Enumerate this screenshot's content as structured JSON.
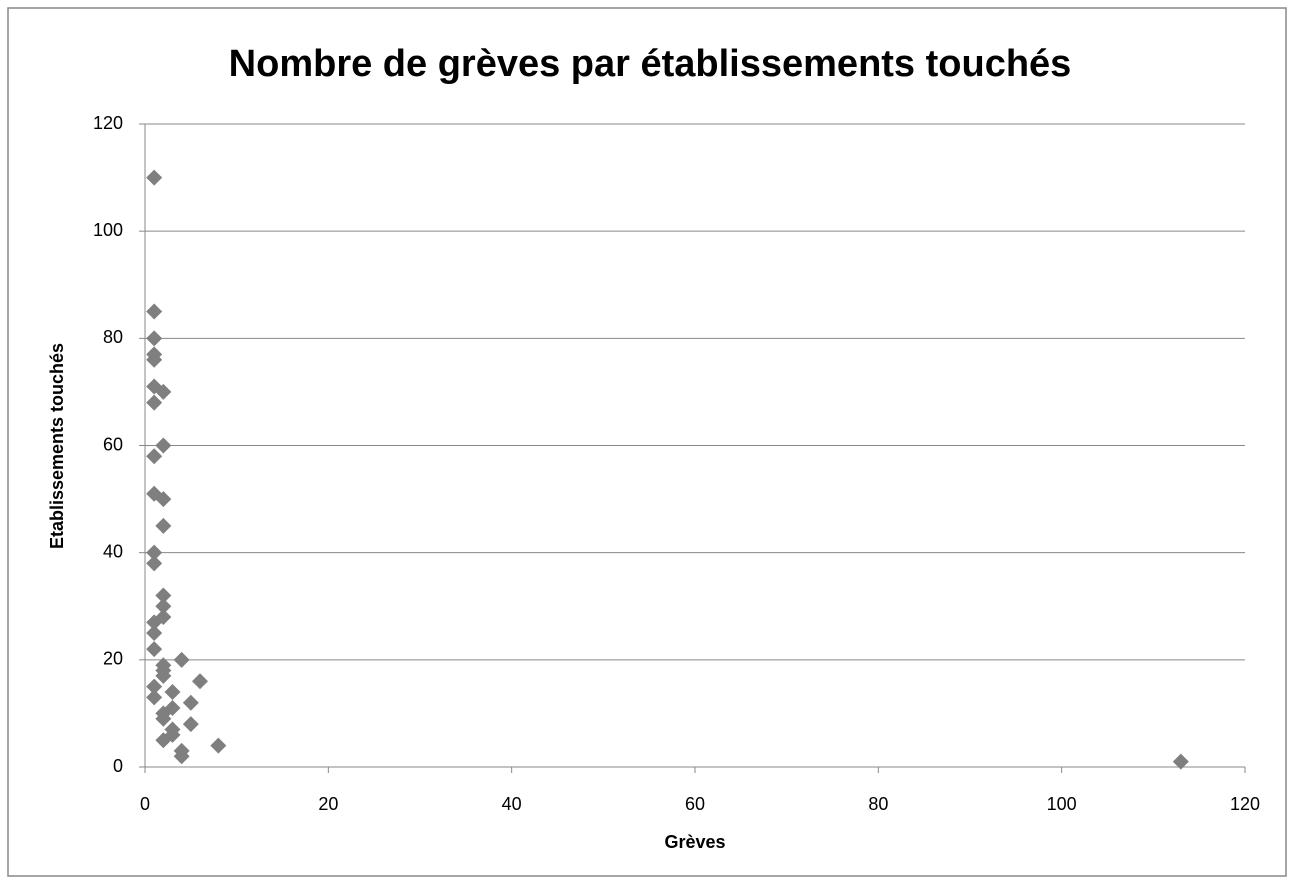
{
  "chart_data": {
    "type": "scatter",
    "title": "Nombre de grèves par établissements touchés",
    "xlabel": "Grèves",
    "ylabel": "Etablissements touchés",
    "color": "#7f7f7f",
    "grid": true,
    "xlim": [
      0,
      120
    ],
    "xticks": [
      0,
      20,
      40,
      60,
      80,
      100,
      120
    ],
    "ylim": [
      0,
      120
    ],
    "yticks": [
      0,
      20,
      40,
      60,
      80,
      100,
      120
    ],
    "x": [
      1,
      1,
      1,
      1,
      1,
      1,
      2,
      1,
      2,
      1,
      1,
      2,
      2,
      1,
      1,
      2,
      2,
      2,
      1,
      1,
      1,
      4,
      2,
      2,
      2,
      6,
      1,
      3,
      1,
      5,
      3,
      2,
      2,
      5,
      3,
      3,
      2,
      8,
      4,
      4,
      113
    ],
    "values": [
      110,
      85,
      80,
      77,
      76,
      71,
      70,
      68,
      60,
      58,
      51,
      50,
      45,
      40,
      38,
      32,
      30,
      28,
      27,
      25,
      22,
      20,
      19,
      18,
      17,
      16,
      15,
      14,
      13,
      12,
      11,
      10,
      9,
      8,
      7,
      6,
      5,
      4,
      3,
      2,
      1
    ]
  }
}
